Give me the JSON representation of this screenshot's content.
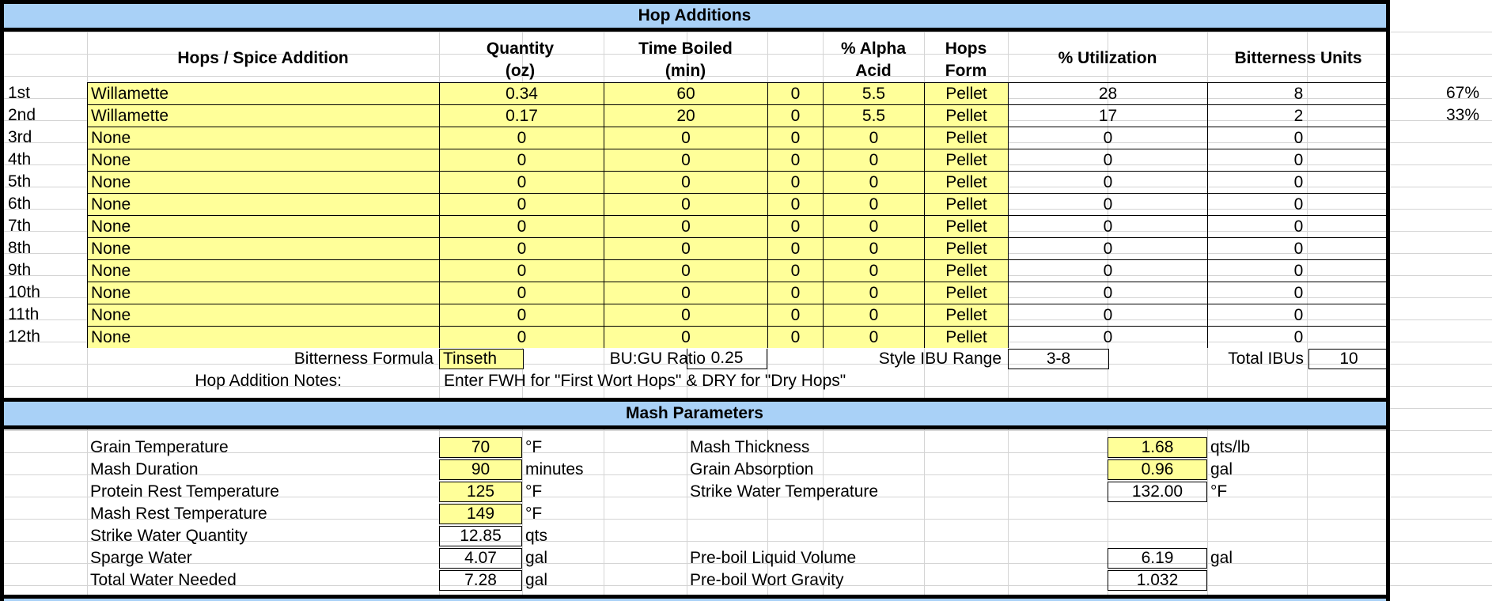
{
  "hop_additions": {
    "title": "Hop Additions",
    "columns": {
      "addition": "Hops / Spice Addition",
      "quantity_1": "Quantity",
      "quantity_2": "(oz)",
      "time_1": "Time Boiled",
      "time_2": "(min)",
      "alpha_1": "% Alpha",
      "alpha_2": "Acid",
      "form_1": "Hops",
      "form_2": "Form",
      "utilization": "% Utilization",
      "bitterness": "Bitterness Units"
    },
    "rows": [
      {
        "label": "1st",
        "name": "Willamette",
        "qty": "0.34",
        "time": "60",
        "extra": "0",
        "alpha": "5.5",
        "form": "Pellet",
        "util": "28",
        "bu": "8",
        "pct": "67%"
      },
      {
        "label": "2nd",
        "name": "Willamette",
        "qty": "0.17",
        "time": "20",
        "extra": "0",
        "alpha": "5.5",
        "form": "Pellet",
        "util": "17",
        "bu": "2",
        "pct": "33%"
      },
      {
        "label": "3rd",
        "name": "None",
        "qty": "0",
        "time": "0",
        "extra": "0",
        "alpha": "0",
        "form": "Pellet",
        "util": "0",
        "bu": "0",
        "pct": ""
      },
      {
        "label": "4th",
        "name": "None",
        "qty": "0",
        "time": "0",
        "extra": "0",
        "alpha": "0",
        "form": "Pellet",
        "util": "0",
        "bu": "0",
        "pct": ""
      },
      {
        "label": "5th",
        "name": "None",
        "qty": "0",
        "time": "0",
        "extra": "0",
        "alpha": "0",
        "form": "Pellet",
        "util": "0",
        "bu": "0",
        "pct": ""
      },
      {
        "label": "6th",
        "name": "None",
        "qty": "0",
        "time": "0",
        "extra": "0",
        "alpha": "0",
        "form": "Pellet",
        "util": "0",
        "bu": "0",
        "pct": ""
      },
      {
        "label": "7th",
        "name": "None",
        "qty": "0",
        "time": "0",
        "extra": "0",
        "alpha": "0",
        "form": "Pellet",
        "util": "0",
        "bu": "0",
        "pct": ""
      },
      {
        "label": "8th",
        "name": "None",
        "qty": "0",
        "time": "0",
        "extra": "0",
        "alpha": "0",
        "form": "Pellet",
        "util": "0",
        "bu": "0",
        "pct": ""
      },
      {
        "label": "9th",
        "name": "None",
        "qty": "0",
        "time": "0",
        "extra": "0",
        "alpha": "0",
        "form": "Pellet",
        "util": "0",
        "bu": "0",
        "pct": ""
      },
      {
        "label": "10th",
        "name": "None",
        "qty": "0",
        "time": "0",
        "extra": "0",
        "alpha": "0",
        "form": "Pellet",
        "util": "0",
        "bu": "0",
        "pct": ""
      },
      {
        "label": "11th",
        "name": "None",
        "qty": "0",
        "time": "0",
        "extra": "0",
        "alpha": "0",
        "form": "Pellet",
        "util": "0",
        "bu": "0",
        "pct": ""
      },
      {
        "label": "12th",
        "name": "None",
        "qty": "0",
        "time": "0",
        "extra": "0",
        "alpha": "0",
        "form": "Pellet",
        "util": "0",
        "bu": "0",
        "pct": ""
      }
    ],
    "summary": {
      "formula_label": "Bitterness Formula",
      "formula_value": "Tinseth",
      "ratio_label": "BU:GU Ratio",
      "ratio_value": "0.25",
      "style_label": "Style IBU Range",
      "style_value": "3-8",
      "total_label": "Total IBUs",
      "total_value": "10"
    },
    "notes_label": "Hop Addition Notes:",
    "notes_value": "Enter FWH for \"First Wort Hops\" & DRY for \"Dry Hops\""
  },
  "mash_parameters": {
    "title": "Mash Parameters",
    "left": [
      {
        "label": "Grain Temperature",
        "value": "70",
        "unit": "°F",
        "input": true
      },
      {
        "label": "Mash Duration",
        "value": "90",
        "unit": "minutes",
        "input": true
      },
      {
        "label": "Protein Rest Temperature",
        "value": "125",
        "unit": "°F",
        "input": true
      },
      {
        "label": "Mash Rest Temperature",
        "value": "149",
        "unit": "°F",
        "input": true
      },
      {
        "label": "Strike Water Quantity",
        "value": "12.85",
        "unit": "qts",
        "input": false
      },
      {
        "label": "Sparge Water",
        "value": "4.07",
        "unit": "gal",
        "input": false
      },
      {
        "label": "Total Water Needed",
        "value": "7.28",
        "unit": "gal",
        "input": false
      }
    ],
    "right": [
      {
        "label": "Mash Thickness",
        "value": "1.68",
        "unit": "qts/lb",
        "input": true
      },
      {
        "label": "Grain Absorption",
        "value": "0.96",
        "unit": "gal",
        "input": true
      },
      {
        "label": "Strike Water Temperature",
        "value": "132.00",
        "unit": "°F",
        "input": false
      },
      {
        "label": "Pre-boil Liquid Volume",
        "value": "6.19",
        "unit": "gal",
        "input": false
      },
      {
        "label": "Pre-boil Wort Gravity",
        "value": "1.032",
        "unit": "",
        "input": false
      }
    ]
  },
  "colors": {
    "header_blue": "#a9d1f7",
    "input_yellow": "#ffff99"
  }
}
